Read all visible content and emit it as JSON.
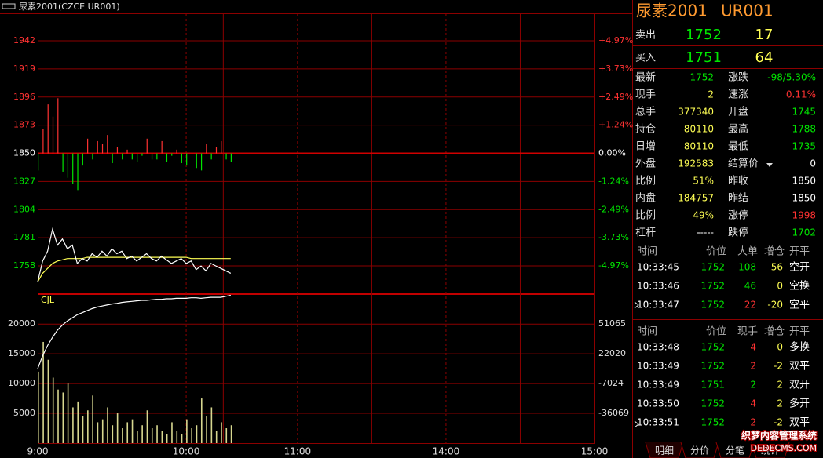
{
  "header": {
    "title": "尿素2001(CZCE UR001)"
  },
  "chart": {
    "xlim": [
      0,
      225
    ],
    "xticks": [
      {
        "value": 0,
        "label": "9:00"
      },
      {
        "value": 60,
        "label": "10:00"
      },
      {
        "value": 105,
        "label": "11:00"
      },
      {
        "value": 165,
        "label": "14:00"
      },
      {
        "value": 225,
        "label": "15:00"
      }
    ],
    "minutes": [
      0,
      2,
      4,
      6,
      8,
      10,
      12,
      14,
      16,
      18,
      20,
      22,
      24,
      26,
      28,
      30,
      32,
      34,
      36,
      38,
      40,
      42,
      44,
      46,
      48,
      50,
      52,
      54,
      56,
      58,
      60,
      62,
      64,
      66,
      68,
      70,
      72,
      74,
      76,
      78
    ],
    "colors": {
      "up": "#ff3232",
      "down": "#00e600",
      "flat": "#ffffff",
      "grid": "#8c0000",
      "price": "#ffffff",
      "average": "#ffff54",
      "volume": "#d8d890",
      "open_interest": "#ffffff"
    },
    "price_panel": {
      "ylim": [
        1735.6,
        1963.8
      ],
      "yticks": [
        1942,
        1919,
        1896,
        1873,
        1850,
        1827,
        1804,
        1781,
        1758
      ],
      "pct_labels": [
        "+4.97%",
        "+3.73%",
        "+2.49%",
        "+1.24%",
        "0.00%",
        "-1.24%",
        "-2.49%",
        "-3.73%",
        "-4.97%"
      ],
      "base": 1850,
      "price": [
        1745,
        1762,
        1770,
        1788,
        1775,
        1780,
        1772,
        1775,
        1760,
        1764,
        1762,
        1768,
        1765,
        1770,
        1766,
        1772,
        1768,
        1770,
        1764,
        1766,
        1762,
        1765,
        1768,
        1764,
        1762,
        1766,
        1763,
        1760,
        1762,
        1764,
        1760,
        1762,
        1755,
        1758,
        1754,
        1760,
        1758,
        1756,
        1754,
        1752
      ],
      "average": [
        1745,
        1752,
        1756,
        1760,
        1762,
        1763,
        1764,
        1764,
        1764,
        1764,
        1765,
        1765,
        1765,
        1765,
        1765,
        1765,
        1765,
        1765,
        1765,
        1765,
        1765,
        1765,
        1765,
        1765,
        1765,
        1765,
        1765,
        1765,
        1765,
        1765,
        1765,
        1764,
        1764,
        1764,
        1764,
        1764,
        1764,
        1764,
        1764,
        1764
      ],
      "delta_bars": [
        1836,
        1870,
        1890,
        1880,
        1895,
        1835,
        1830,
        1825,
        1820,
        1840,
        1862,
        1845,
        1860,
        1858,
        1865,
        1842,
        1855,
        1845,
        1853,
        1845,
        1843,
        1848,
        1862,
        1845,
        1845,
        1860,
        1843,
        1848,
        1853,
        1842,
        1840,
        1850,
        1838,
        1836,
        1858,
        1845,
        1855,
        1860,
        1845,
        1843
      ]
    },
    "volume_panel": {
      "label": "CJL",
      "ylim": [
        0,
        24900
      ],
      "yticks": [
        20000,
        15000,
        10000,
        5000
      ],
      "y2lim": [
        -65114,
        79340
      ],
      "y2ticks": [
        51065,
        22020,
        -7024,
        -36069
      ],
      "volume": [
        12000,
        17000,
        14000,
        11000,
        9000,
        8500,
        10000,
        6000,
        7000,
        4500,
        5500,
        8000,
        3500,
        4000,
        6000,
        3000,
        5000,
        2500,
        3500,
        4000,
        2000,
        3000,
        5500,
        2500,
        3000,
        2000,
        1500,
        3500,
        2000,
        1500,
        4000,
        2500,
        3000,
        7500,
        4500,
        6000,
        2000,
        3500,
        2500,
        3000
      ],
      "open_interest": [
        7500,
        20000,
        30000,
        38000,
        45000,
        50000,
        54000,
        57000,
        60000,
        62000,
        64000,
        66000,
        67500,
        68500,
        69500,
        70500,
        71000,
        72000,
        72500,
        73000,
        73500,
        74000,
        74000,
        74500,
        75000,
        75000,
        75500,
        75500,
        76000,
        76000,
        76000,
        76500,
        76500,
        76000,
        76500,
        77000,
        77000,
        77000,
        78000,
        79000
      ]
    }
  },
  "quote": {
    "name": "尿素2001",
    "code": "UR001",
    "book": [
      {
        "label": "卖出",
        "price": 1752,
        "volume": 17
      },
      {
        "label": "买入",
        "price": 1751,
        "volume": 64
      }
    ],
    "stats": [
      [
        {
          "label": "最新",
          "value": 1752,
          "color": "#00e600"
        },
        {
          "label": "涨跌",
          "value": "-98/5.30%",
          "color": "#00e600"
        }
      ],
      [
        {
          "label": "现手",
          "value": 2,
          "color": "#ffff54"
        },
        {
          "label": "速涨",
          "value": "0.11%",
          "color": "#ff3232"
        }
      ],
      [
        {
          "label": "总手",
          "value": 377340,
          "color": "#ffff54"
        },
        {
          "label": "开盘",
          "value": 1745,
          "color": "#00e600"
        }
      ],
      [
        {
          "label": "持仓",
          "value": 80110,
          "color": "#ffff54"
        },
        {
          "label": "最高",
          "value": 1788,
          "color": "#00e600"
        }
      ],
      [
        {
          "label": "日增",
          "value": 80110,
          "color": "#ffff54"
        },
        {
          "label": "最低",
          "value": 1735,
          "color": "#00e600"
        }
      ],
      [
        {
          "label": "外盘",
          "value": 192583,
          "color": "#ffff54"
        },
        {
          "label": "结算价",
          "value": 0,
          "color": "#ffffff"
        }
      ],
      [
        {
          "label": "比例",
          "value": "51%",
          "color": "#ffff54"
        },
        {
          "label": "昨收",
          "value": 1850,
          "color": "#ffffff"
        }
      ],
      [
        {
          "label": "内盘",
          "value": 184757,
          "color": "#ffff54"
        },
        {
          "label": "昨结",
          "value": 1850,
          "color": "#ffffff"
        }
      ],
      [
        {
          "label": "比例",
          "value": "49%",
          "color": "#ffff54"
        },
        {
          "label": "涨停",
          "value": 1998,
          "color": "#ff3232"
        }
      ],
      [
        {
          "label": "杠杆",
          "value": "-----",
          "color": "#ffffff"
        },
        {
          "label": "跌停",
          "value": 1702,
          "color": "#00e600"
        }
      ]
    ]
  },
  "trades": [
    {
      "columns": [
        "时间",
        "价位",
        "大单",
        "增仓",
        "开平"
      ],
      "rows": [
        {
          "cells": [
            "10:33:45",
            1752,
            108,
            56,
            "空开"
          ],
          "colors": [
            "#ffffff",
            "#00e600",
            "#00e600",
            "#ffff54",
            "#ffffff"
          ]
        },
        {
          "cells": [
            "10:33:46",
            1752,
            46,
            0,
            "空换"
          ],
          "colors": [
            "#ffffff",
            "#00e600",
            "#00e600",
            "#ffff54",
            "#ffffff"
          ]
        },
        {
          "cells": [
            "10:33:47",
            1752,
            22,
            -20,
            "空平"
          ],
          "colors": [
            "#ffffff",
            "#00e600",
            "#ff3232",
            "#ffff54",
            "#ffffff"
          ]
        }
      ]
    },
    {
      "columns": [
        "时间",
        "价位",
        "现手",
        "增仓",
        "开平"
      ],
      "rows": [
        {
          "cells": [
            "10:33:48",
            1752,
            4,
            0,
            "多换"
          ],
          "colors": [
            "#ffffff",
            "#00e600",
            "#ff3232",
            "#ffff54",
            "#ffffff"
          ]
        },
        {
          "cells": [
            "10:33:49",
            1752,
            2,
            -2,
            "双平"
          ],
          "colors": [
            "#ffffff",
            "#00e600",
            "#ff3232",
            "#ffff54",
            "#ffffff"
          ]
        },
        {
          "cells": [
            "10:33:49",
            1751,
            2,
            2,
            "双开"
          ],
          "colors": [
            "#ffffff",
            "#00e600",
            "#00e600",
            "#ffff54",
            "#ffffff"
          ]
        },
        {
          "cells": [
            "10:33:50",
            1752,
            4,
            2,
            "多开"
          ],
          "colors": [
            "#ffffff",
            "#00e600",
            "#ff3232",
            "#ffff54",
            "#ffffff"
          ]
        },
        {
          "cells": [
            "10:33:51",
            1752,
            2,
            -2,
            "双平"
          ],
          "colors": [
            "#ffffff",
            "#00e600",
            "#ff3232",
            "#ffff54",
            "#ffffff"
          ]
        }
      ]
    }
  ],
  "tabs": [
    "明细",
    "分价",
    "分笔",
    "统计"
  ],
  "watermark": [
    "织梦内容管理系统",
    "DEDECMS.COM"
  ]
}
